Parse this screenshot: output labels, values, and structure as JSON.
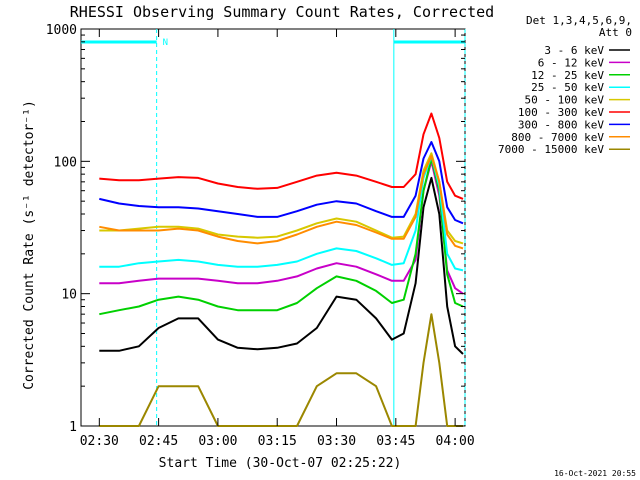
{
  "chart_data": {
    "type": "line",
    "title": "RHESSI Observing Summary Count Rates, Corrected",
    "xlabel": "Start Time (30-Oct-07 02:25:22)",
    "ylabel": "Corrected Count Rate (s⁻¹ detector⁻¹)",
    "y_scale": "log",
    "ylim": [
      1,
      1000
    ],
    "xlim": [
      "02:25:22",
      "04:02:30"
    ],
    "grid": false,
    "legend_position": "top-right",
    "legend_header": [
      "Det 1,3,4,5,6,9,",
      "Att 0"
    ],
    "x_ticks": [
      "02:30",
      "02:45",
      "03:00",
      "03:15",
      "03:30",
      "03:45",
      "04:00"
    ],
    "y_ticks": [
      "1",
      "10",
      "100",
      "1000"
    ],
    "x": [
      "02:30",
      "02:35",
      "02:40",
      "02:45",
      "02:50",
      "02:55",
      "03:00",
      "03:05",
      "03:10",
      "03:15",
      "03:20",
      "03:25",
      "03:30",
      "03:35",
      "03:40",
      "03:44",
      "03:47",
      "03:50",
      "03:52",
      "03:54",
      "03:56",
      "03:58",
      "04:00",
      "04:02"
    ],
    "series": [
      {
        "name": "3 - 6 keV",
        "color": "#000000",
        "values": [
          3.7,
          3.7,
          4.0,
          5.5,
          6.5,
          6.5,
          4.5,
          3.9,
          3.8,
          3.9,
          4.2,
          5.5,
          9.5,
          9.0,
          6.5,
          4.5,
          5.0,
          12,
          45,
          75,
          40,
          8,
          4,
          3.5
        ]
      },
      {
        "name": "6 - 12 keV",
        "color": "#c800c8",
        "values": [
          12,
          12,
          12.5,
          13,
          13,
          13,
          12.5,
          12,
          12,
          12.5,
          13.5,
          15.5,
          17,
          16,
          14,
          12.5,
          12.5,
          18,
          60,
          100,
          55,
          15,
          11,
          10
        ]
      },
      {
        "name": "12 - 25 keV",
        "color": "#00d000",
        "values": [
          7,
          7.5,
          8,
          9,
          9.5,
          9,
          8,
          7.5,
          7.5,
          7.5,
          8.5,
          11,
          13.5,
          12.5,
          10.5,
          8.5,
          9,
          20,
          60,
          105,
          60,
          14,
          8.5,
          8
        ]
      },
      {
        "name": "25 - 50 keV",
        "color": "#00ffff",
        "values": [
          16,
          16,
          17,
          17.5,
          18,
          17.5,
          16.5,
          16,
          16,
          16.5,
          17.5,
          20,
          22,
          21,
          18.5,
          16.5,
          17,
          30,
          75,
          110,
          65,
          20,
          15.5,
          15
        ]
      },
      {
        "name": "50 - 100 keV",
        "color": "#d7c800",
        "values": [
          30,
          30,
          31,
          32,
          32,
          31,
          28,
          27,
          26.5,
          27,
          30,
          34,
          37,
          35,
          30,
          26.5,
          27,
          40,
          85,
          115,
          70,
          30,
          25,
          24
        ]
      },
      {
        "name": "100 - 300 keV",
        "color": "#ff0000",
        "values": [
          74,
          72,
          72,
          74,
          76,
          75,
          68,
          64,
          62,
          63,
          70,
          78,
          82,
          78,
          70,
          64,
          64,
          80,
          160,
          230,
          150,
          70,
          55,
          52
        ]
      },
      {
        "name": "300 - 800 keV",
        "color": "#0000ff",
        "values": [
          52,
          48,
          46,
          45,
          45,
          44,
          42,
          40,
          38,
          38,
          42,
          47,
          50,
          48,
          42,
          38,
          38,
          55,
          105,
          140,
          100,
          45,
          36,
          34
        ]
      },
      {
        "name": "800 - 7000 keV",
        "color": "#ff8c00",
        "values": [
          32,
          30,
          30,
          30,
          31,
          30,
          27,
          25,
          24,
          25,
          28,
          32,
          35,
          33,
          29,
          26,
          26,
          38,
          80,
          110,
          70,
          28,
          23,
          22
        ]
      },
      {
        "name": "7000 - 15000 keV",
        "color": "#9b8700",
        "values": [
          1,
          1,
          1,
          2,
          2,
          2,
          1,
          1,
          1,
          1,
          1,
          2,
          2.5,
          2.5,
          2,
          1,
          1,
          1,
          3,
          7,
          3,
          1,
          1,
          1
        ]
      }
    ],
    "annotations": {
      "label": "N",
      "segments": [
        [
          "02:25:22",
          "02:44:30"
        ],
        [
          "03:44:30",
          "04:02:30"
        ]
      ],
      "boundaries": [
        "02:44:30",
        "03:44:30",
        "04:02:30"
      ]
    }
  },
  "footer": {
    "timestamp": "16-Oct-2021 20:55"
  }
}
